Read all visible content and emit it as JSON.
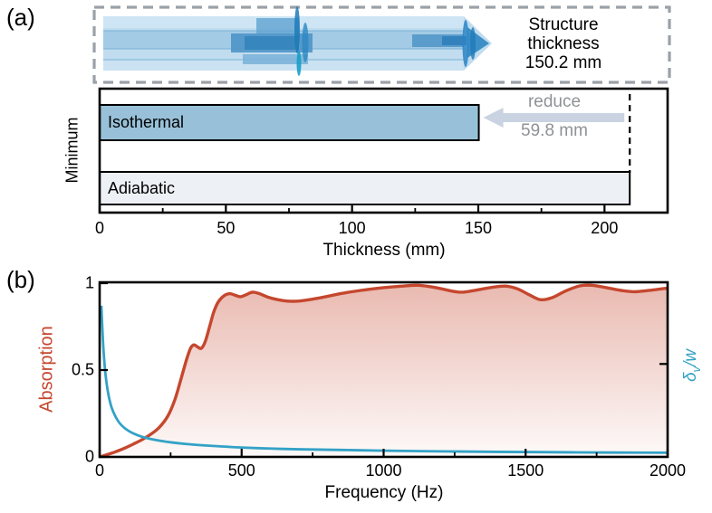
{
  "panel_a": {
    "label": "(a)",
    "inset_caption": [
      "Structure",
      "thickness",
      "150.2 mm"
    ],
    "annotation": {
      "reduce_line1": "reduce",
      "reduce_line2": "59.8 mm"
    }
  },
  "panel_b": {
    "label": "(b)"
  },
  "chart_data": [
    {
      "type": "bar",
      "orientation": "horizontal",
      "categories": [
        "Isothermal",
        "Adiabatic"
      ],
      "values": [
        150.2,
        210.0
      ],
      "bar_colors": [
        "#98c1d9",
        "#edf1f6"
      ],
      "xlabel": "Thickness (mm)",
      "ylabel": "Minimum",
      "xlim": [
        0,
        225
      ],
      "xticks": [
        0,
        50,
        100,
        150,
        200
      ],
      "xticklabels": [
        "0",
        "50",
        "100",
        "150",
        "200"
      ],
      "xminorticks": [
        25,
        75,
        125,
        175
      ],
      "annotations": [
        {
          "type": "dashed-vline",
          "x": 210
        },
        {
          "type": "arrow-left",
          "from_x": 210,
          "to_x": 152,
          "label": "reduce 59.8 mm"
        }
      ],
      "inset_text": "Structure thickness 150.2 mm"
    },
    {
      "type": "line",
      "xlabel": "Frequency (Hz)",
      "ylabel_left": "Absorption",
      "ylabel_right": "δv/w",
      "ylabel_right_parts": {
        "base": "δ",
        "sub": "v",
        "rest": "/w"
      },
      "xlim": [
        0,
        2000
      ],
      "ylim_left": [
        0,
        1
      ],
      "xticks": [
        0,
        500,
        1000,
        1500,
        2000
      ],
      "xticklabels": [
        "0",
        "500",
        "1000",
        "1500",
        "2000"
      ],
      "xminorticks": [
        250,
        750,
        1250,
        1750
      ],
      "yticks_left": [
        0,
        0.5,
        1
      ],
      "yticklabels_left": [
        "0",
        "0.5",
        "1"
      ],
      "right_axis_tick_display_positions": [
        0.535
      ],
      "series": [
        {
          "name": "Absorption",
          "axis": "left",
          "color": "#c5472e",
          "fill": "red-gradient",
          "x": [
            0,
            30,
            60,
            90,
            120,
            150,
            180,
            210,
            240,
            265,
            285,
            305,
            320,
            332,
            345,
            358,
            372,
            388,
            402,
            418,
            438,
            458,
            478,
            495,
            515,
            538,
            562,
            592,
            625,
            662,
            700,
            742,
            792,
            852,
            922,
            1000,
            1062,
            1122,
            1182,
            1242,
            1275,
            1312,
            1382,
            1432,
            1472,
            1512,
            1552,
            1592,
            1642,
            1692,
            1732,
            1782,
            1842,
            1882,
            1932,
            2000
          ],
          "y": [
            0,
            0.015,
            0.032,
            0.052,
            0.075,
            0.1,
            0.13,
            0.17,
            0.235,
            0.33,
            0.44,
            0.555,
            0.625,
            0.645,
            0.633,
            0.625,
            0.665,
            0.755,
            0.835,
            0.893,
            0.928,
            0.94,
            0.93,
            0.922,
            0.933,
            0.948,
            0.94,
            0.92,
            0.906,
            0.897,
            0.897,
            0.906,
            0.921,
            0.941,
            0.959,
            0.974,
            0.983,
            0.988,
            0.975,
            0.954,
            0.948,
            0.956,
            0.976,
            0.983,
            0.967,
            0.934,
            0.905,
            0.916,
            0.956,
            0.985,
            0.988,
            0.975,
            0.957,
            0.951,
            0.958,
            0.972
          ]
        },
        {
          "name": "δv/w",
          "axis": "right",
          "color": "#33a2c6",
          "fill": "none",
          "x": [
            6,
            9,
            13,
            18,
            24,
            32,
            42,
            55,
            70,
            90,
            115,
            145,
            175,
            210,
            255,
            305,
            360,
            420,
            500,
            600,
            700,
            850,
            1000,
            1200,
            1400,
            1600,
            1800,
            2000
          ],
          "y": [
            0.87,
            0.76,
            0.63,
            0.52,
            0.43,
            0.35,
            0.285,
            0.235,
            0.195,
            0.163,
            0.138,
            0.118,
            0.105,
            0.094,
            0.083,
            0.074,
            0.067,
            0.061,
            0.054,
            0.048,
            0.044,
            0.04,
            0.036,
            0.032,
            0.029,
            0.027,
            0.025,
            0.024
          ]
        }
      ]
    }
  ],
  "colors": {
    "absorption_red": "#c5472e",
    "boundary_blue": "#33a2c6",
    "isothermal_bar": "#98c1d9",
    "adiabatic_bar": "#edf1f6",
    "reduce_arrow": "#c9d3e1",
    "reduce_text": "#8f9295",
    "dashed_box": "#9aa1a8",
    "axis_black": "#000000"
  },
  "icons": {
    "structure_rendering": "translucent-blue-layered-acoustic-structure"
  }
}
